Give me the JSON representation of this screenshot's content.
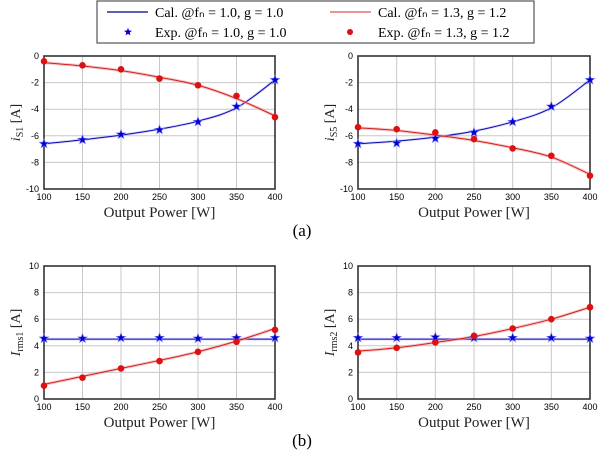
{
  "legend": {
    "entries": [
      {
        "label": "Cal. @fₙ = 1.0, g = 1.0",
        "kind": "line",
        "color": "#00008b"
      },
      {
        "label": "Cal. @fₙ = 1.3, g = 1.2",
        "kind": "line",
        "color": "#e05050"
      },
      {
        "label": "Exp. @fₙ = 1.0, g = 1.0",
        "kind": "star",
        "color": "#0000cc"
      },
      {
        "label": "Exp. @fₙ = 1.3, g = 1.2",
        "kind": "dot",
        "color": "#dd1111"
      }
    ]
  },
  "panel_labels": {
    "a": "(a)",
    "b": "(b)"
  },
  "colors": {
    "blue": "#0a0ab0",
    "red": "#d42020",
    "grid": "#c8c8c8"
  },
  "chart_data": [
    {
      "type": "line",
      "id": "is1",
      "xlabel": "Output Power [W]",
      "ylabel": "i_S1 [A]",
      "ylabel_main": "i",
      "ylabel_sub": "S1",
      "ylabel_unit": " [A]",
      "xlim": [
        100,
        400
      ],
      "ylim": [
        -10,
        0
      ],
      "xticks": [
        100,
        150,
        200,
        250,
        300,
        350,
        400
      ],
      "yticks": [
        -10,
        -8,
        -6,
        -4,
        -2,
        0
      ],
      "grid": true,
      "x": [
        100,
        150,
        200,
        250,
        300,
        350,
        400
      ],
      "series": [
        {
          "name": "Cal. @fn = 1.0, g = 1.0",
          "style": "line",
          "color": "blue",
          "values": [
            -6.6,
            -6.3,
            -5.95,
            -5.5,
            -4.9,
            -3.9,
            -1.8
          ]
        },
        {
          "name": "Cal. @fn = 1.3, g = 1.2",
          "style": "line",
          "color": "red",
          "values": [
            -0.5,
            -0.75,
            -1.1,
            -1.6,
            -2.2,
            -3.2,
            -4.5
          ]
        },
        {
          "name": "Exp. @fn = 1.0, g = 1.0",
          "style": "star",
          "color": "blue",
          "values": [
            -6.6,
            -6.3,
            -5.9,
            -5.55,
            -4.95,
            -3.8,
            -1.8
          ]
        },
        {
          "name": "Exp. @fn = 1.3, g = 1.2",
          "style": "dot",
          "color": "red",
          "values": [
            -0.4,
            -0.7,
            -1.0,
            -1.7,
            -2.2,
            -3.0,
            -4.6
          ]
        }
      ]
    },
    {
      "type": "line",
      "id": "is5",
      "xlabel": "Output Power [W]",
      "ylabel": "i_S5 [A]",
      "ylabel_main": "i",
      "ylabel_sub": "S5",
      "ylabel_unit": " [A]",
      "xlim": [
        100,
        400
      ],
      "ylim": [
        -10,
        0
      ],
      "xticks": [
        100,
        150,
        200,
        250,
        300,
        350,
        400
      ],
      "yticks": [
        -10,
        -8,
        -6,
        -4,
        -2,
        0
      ],
      "grid": true,
      "x": [
        100,
        150,
        200,
        250,
        300,
        350,
        400
      ],
      "series": [
        {
          "name": "Cal. @fn = 1.0, g = 1.0",
          "style": "line",
          "color": "blue",
          "values": [
            -6.6,
            -6.4,
            -6.1,
            -5.65,
            -4.95,
            -3.9,
            -1.8
          ]
        },
        {
          "name": "Cal. @fn = 1.3, g = 1.2",
          "style": "line",
          "color": "red",
          "values": [
            -5.4,
            -5.6,
            -5.95,
            -6.35,
            -6.9,
            -7.6,
            -8.9
          ]
        },
        {
          "name": "Exp. @fn = 1.0, g = 1.0",
          "style": "star",
          "color": "blue",
          "values": [
            -6.6,
            -6.55,
            -6.2,
            -5.75,
            -4.95,
            -3.8,
            -1.8
          ]
        },
        {
          "name": "Exp. @fn = 1.3, g = 1.2",
          "style": "dot",
          "color": "red",
          "values": [
            -5.35,
            -5.5,
            -5.75,
            -6.25,
            -6.95,
            -7.5,
            -9.0
          ]
        }
      ]
    },
    {
      "type": "line",
      "id": "irms1",
      "xlabel": "Output Power [W]",
      "ylabel": "I_rms1 [A]",
      "ylabel_main": "I",
      "ylabel_sub": "rms1",
      "ylabel_unit": " [A]",
      "xlim": [
        100,
        400
      ],
      "ylim": [
        0,
        10
      ],
      "xticks": [
        100,
        150,
        200,
        250,
        300,
        350,
        400
      ],
      "yticks": [
        0,
        2,
        4,
        6,
        8,
        10
      ],
      "grid": true,
      "x": [
        100,
        150,
        200,
        250,
        300,
        350,
        400
      ],
      "series": [
        {
          "name": "Cal. @fn = 1.0, g = 1.0",
          "style": "line",
          "color": "blue",
          "values": [
            4.5,
            4.5,
            4.5,
            4.5,
            4.5,
            4.5,
            4.5
          ]
        },
        {
          "name": "Cal. @fn = 1.3, g = 1.2",
          "style": "line",
          "color": "red",
          "values": [
            1.1,
            1.7,
            2.3,
            2.9,
            3.55,
            4.35,
            5.3
          ]
        },
        {
          "name": "Exp. @fn = 1.0, g = 1.0",
          "style": "star",
          "color": "blue",
          "values": [
            4.55,
            4.55,
            4.6,
            4.6,
            4.55,
            4.6,
            4.6
          ]
        },
        {
          "name": "Exp. @fn = 1.3, g = 1.2",
          "style": "dot",
          "color": "red",
          "values": [
            1.0,
            1.6,
            2.3,
            2.85,
            3.55,
            4.3,
            5.2
          ]
        }
      ]
    },
    {
      "type": "line",
      "id": "irms2",
      "xlabel": "Output Power [W]",
      "ylabel": "I_rms2 [A]",
      "ylabel_main": "I",
      "ylabel_sub": "rms2",
      "ylabel_unit": " [A]",
      "xlim": [
        100,
        400
      ],
      "ylim": [
        0,
        10
      ],
      "xticks": [
        100,
        150,
        200,
        250,
        300,
        350,
        400
      ],
      "yticks": [
        0,
        2,
        4,
        6,
        8,
        10
      ],
      "grid": true,
      "x": [
        100,
        150,
        200,
        250,
        300,
        350,
        400
      ],
      "series": [
        {
          "name": "Cal. @fn = 1.0, g = 1.0",
          "style": "line",
          "color": "blue",
          "values": [
            4.5,
            4.5,
            4.5,
            4.5,
            4.5,
            4.5,
            4.5
          ]
        },
        {
          "name": "Cal. @fn = 1.3, g = 1.2",
          "style": "line",
          "color": "red",
          "values": [
            3.6,
            3.85,
            4.25,
            4.7,
            5.3,
            6.0,
            6.9
          ]
        },
        {
          "name": "Exp. @fn = 1.0, g = 1.0",
          "style": "star",
          "color": "blue",
          "values": [
            4.6,
            4.6,
            4.65,
            4.6,
            4.6,
            4.6,
            4.55
          ]
        },
        {
          "name": "Exp. @fn = 1.3, g = 1.2",
          "style": "dot",
          "color": "red",
          "values": [
            3.5,
            3.85,
            4.25,
            4.75,
            5.3,
            6.0,
            6.9
          ]
        }
      ]
    }
  ]
}
